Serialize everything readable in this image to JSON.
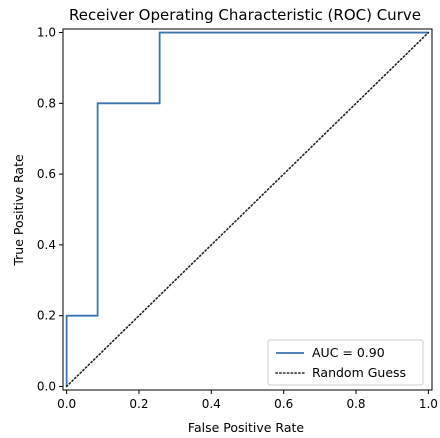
{
  "chart_data": {
    "type": "line",
    "title": "Receiver Operating Characteristic (ROC) Curve",
    "xlabel": "False Positive Rate",
    "ylabel": "True Positive Rate",
    "xlim": [
      -0.01,
      1.01
    ],
    "ylim": [
      -0.01,
      1.01
    ],
    "xticks": [
      0.0,
      0.2,
      0.4,
      0.6,
      0.8,
      1.0
    ],
    "yticks": [
      0.0,
      0.2,
      0.4,
      0.6,
      0.8,
      1.0
    ],
    "xtick_labels": [
      "0.0",
      "0.2",
      "0.4",
      "0.6",
      "0.8",
      "1.0"
    ],
    "ytick_labels": [
      "0.0",
      "0.2",
      "0.4",
      "0.6",
      "0.8",
      "1.0"
    ],
    "grid": false,
    "legend_position": "lower-right",
    "series": [
      {
        "name": "AUC = 0.90",
        "style": "solid",
        "color": "#3a75b0",
        "x": [
          0.0,
          0.0,
          0.0,
          0.0857,
          0.0857,
          0.2571,
          0.2571,
          1.0
        ],
        "y": [
          0.0,
          0.0,
          0.2,
          0.2,
          0.8,
          0.8,
          1.0,
          1.0
        ]
      },
      {
        "name": "Random Guess",
        "style": "dotted",
        "color": "#222222",
        "x": [
          0.0,
          1.0
        ],
        "y": [
          0.0,
          1.0
        ]
      }
    ]
  }
}
